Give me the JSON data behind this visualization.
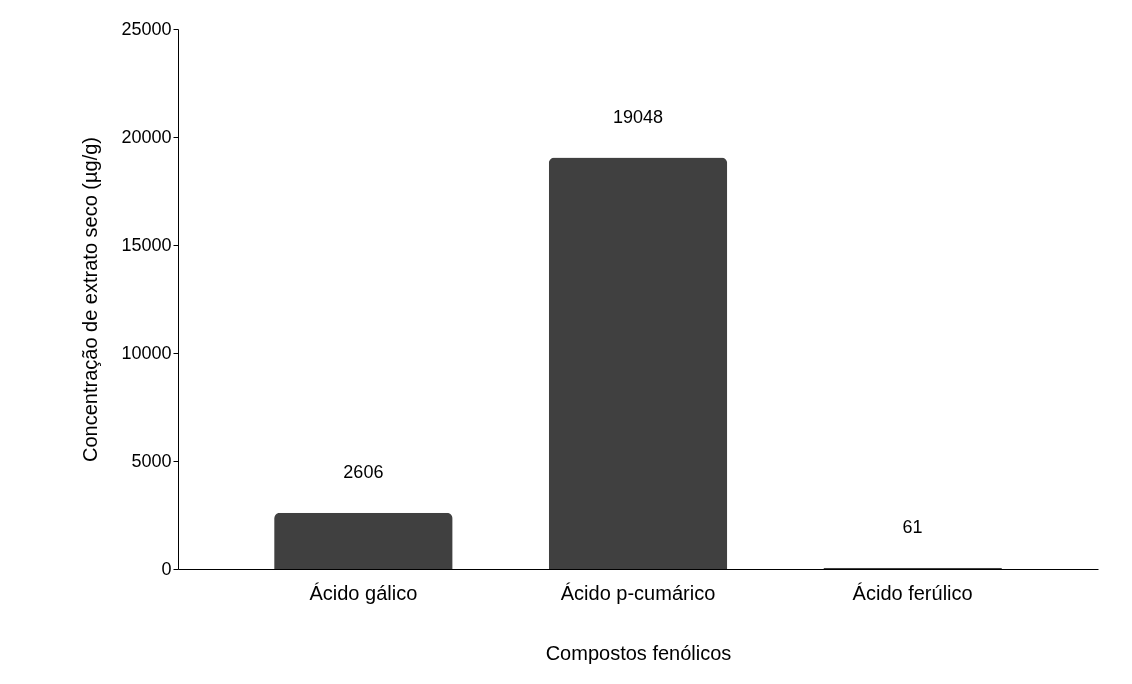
{
  "chart_data": {
    "type": "bar",
    "xlabel": "Compostos fenólicos",
    "ylabel": "Concentração de extrato seco (µg/g)",
    "categories": [
      "Ácido gálico",
      "Ácido p-cumárico",
      "Ácido ferúlico"
    ],
    "values": [
      2606,
      19048,
      61
    ],
    "color": "#404040",
    "ylim": [
      0,
      25000
    ],
    "yticks": [
      0,
      5000,
      10000,
      15000,
      20000,
      25000
    ],
    "data_labels": true,
    "grid": false
  }
}
